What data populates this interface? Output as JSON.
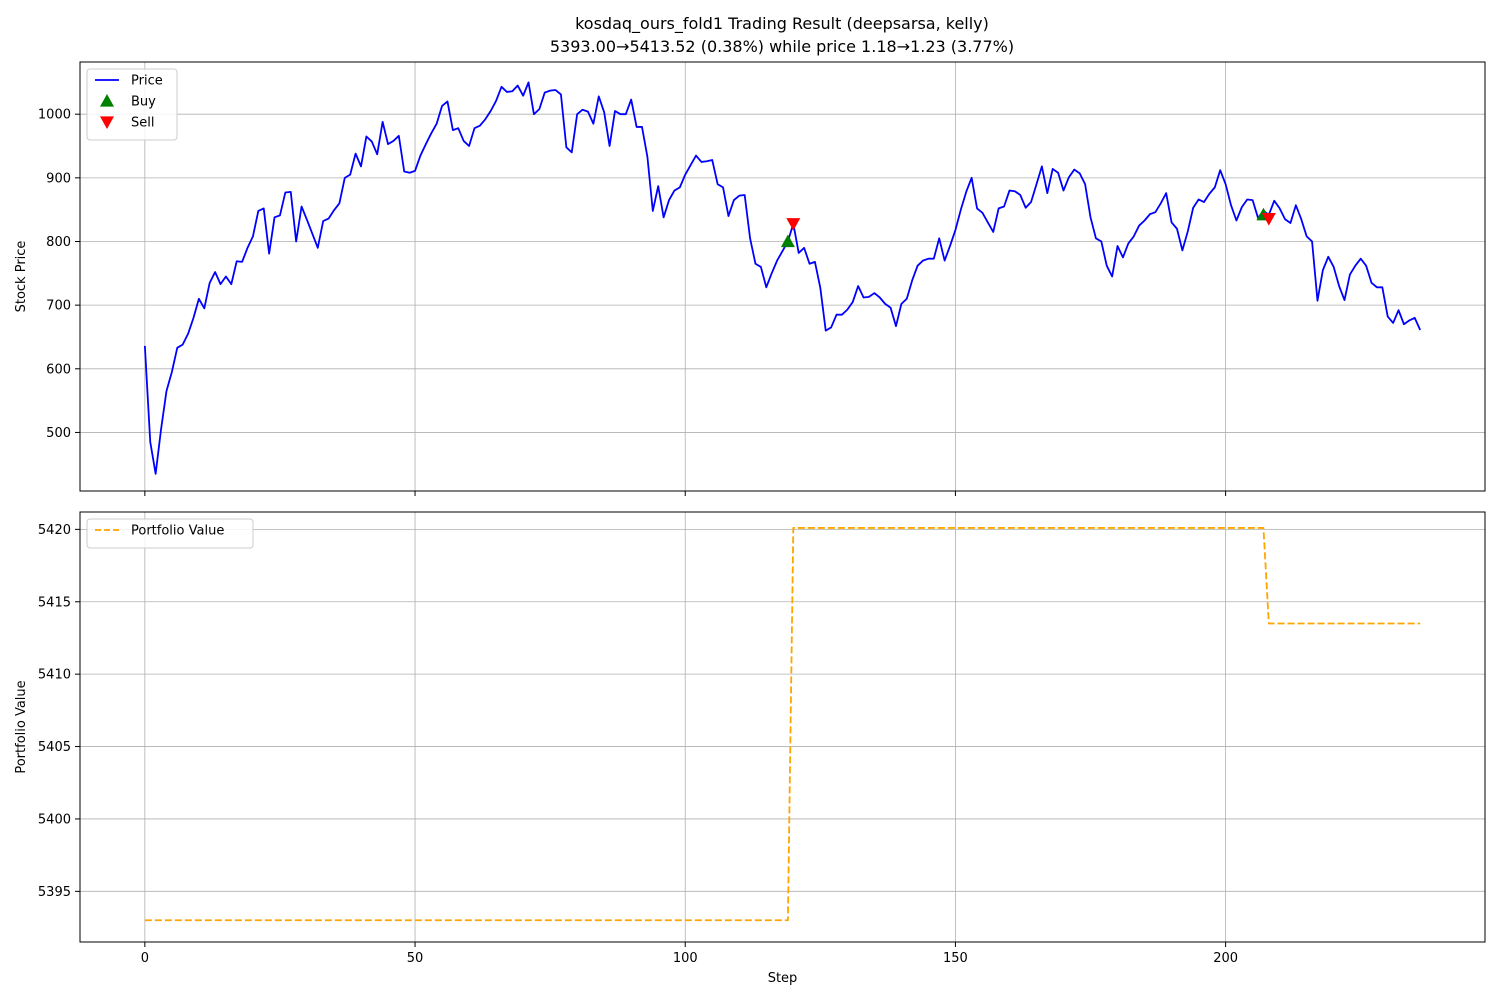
{
  "title_line1": "kosdaq_ours_fold1 Trading Result (deepsarsa, kelly)",
  "title_line2": "5393.00→5413.52 (0.38%) while price 1.18→1.23 (3.77%)",
  "chart_data": [
    {
      "type": "line",
      "ylabel": "Stock Price",
      "xlim": [
        -12,
        248
      ],
      "ylim": [
        408,
        1082
      ],
      "x_ticks": [
        0,
        50,
        100,
        150,
        200
      ],
      "y_ticks": [
        500,
        600,
        700,
        800,
        900,
        1000
      ],
      "grid": true,
      "legend_position": "upper-left",
      "series": [
        {
          "name": "Price",
          "color": "#0000ff",
          "x_start": 0,
          "values": [
            636,
            485,
            435,
            505,
            565,
            595,
            633,
            638,
            655,
            680,
            710,
            695,
            735,
            752,
            733,
            745,
            733,
            769,
            768,
            790,
            808,
            848,
            852,
            781,
            838,
            841,
            877,
            878,
            800,
            855,
            834,
            812,
            790,
            832,
            836,
            849,
            860,
            900,
            905,
            938,
            918,
            965,
            957,
            937,
            988,
            953,
            958,
            966,
            910,
            908,
            911,
            935,
            953,
            970,
            985,
            1013,
            1020,
            975,
            978,
            958,
            950,
            978,
            982,
            992,
            1005,
            1021,
            1043,
            1035,
            1036,
            1045,
            1029,
            1050,
            1000,
            1008,
            1034,
            1037,
            1038,
            1031,
            948,
            940,
            1000,
            1007,
            1004,
            985,
            1028,
            1003,
            950,
            1005,
            1000,
            1000,
            1023,
            980,
            980,
            933,
            848,
            887,
            838,
            865,
            880,
            885,
            905,
            920,
            935,
            925,
            926,
            928,
            890,
            885,
            840,
            865,
            872,
            873,
            805,
            765,
            760,
            728,
            750,
            770,
            785,
            800,
            828,
            782,
            790,
            765,
            768,
            727,
            660,
            665,
            685,
            685,
            693,
            705,
            730,
            712,
            713,
            719,
            712,
            702,
            696,
            667,
            702,
            710,
            739,
            762,
            770,
            773,
            773,
            805,
            770,
            793,
            818,
            850,
            878,
            900,
            852,
            845,
            830,
            815,
            852,
            855,
            880,
            879,
            873,
            853,
            862,
            890,
            918,
            876,
            914,
            908,
            880,
            901,
            913,
            907,
            890,
            838,
            805,
            800,
            762,
            745,
            793,
            775,
            797,
            808,
            825,
            833,
            843,
            846,
            860,
            876,
            830,
            820,
            786,
            816,
            853,
            866,
            862,
            875,
            885,
            912,
            890,
            857,
            833,
            854,
            866,
            865,
            837,
            848,
            842,
            864,
            852,
            835,
            829,
            857,
            835,
            808,
            800,
            707,
            755,
            776,
            760,
            730,
            708,
            748,
            762,
            773,
            762,
            735,
            728,
            728,
            682,
            672,
            692,
            670,
            676,
            680,
            661
          ]
        }
      ],
      "markers": [
        {
          "name": "Buy",
          "color": "#008000",
          "shape": "triangle-up",
          "points": [
            {
              "x": 119,
              "y": 800
            },
            {
              "x": 207,
              "y": 842
            }
          ]
        },
        {
          "name": "Sell",
          "color": "#ff0000",
          "shape": "triangle-down",
          "points": [
            {
              "x": 120,
              "y": 828
            },
            {
              "x": 208,
              "y": 836
            }
          ]
        }
      ]
    },
    {
      "type": "line",
      "xlabel": "Step",
      "ylabel": "Portfolio Value",
      "xlim": [
        -12,
        248
      ],
      "ylim": [
        5391.5,
        5421.2
      ],
      "x_ticks": [
        0,
        50,
        100,
        150,
        200
      ],
      "y_ticks": [
        5395,
        5400,
        5405,
        5410,
        5415,
        5420
      ],
      "grid": true,
      "legend_position": "upper-left",
      "series": [
        {
          "name": "Portfolio Value",
          "color": "#ffa500",
          "style": "dashed",
          "points": [
            [
              0,
              5393.0
            ],
            [
              119,
              5393.0
            ],
            [
              120,
              5420.1
            ],
            [
              207,
              5420.1
            ],
            [
              208,
              5413.5
            ],
            [
              236,
              5413.5
            ]
          ]
        }
      ]
    }
  ]
}
